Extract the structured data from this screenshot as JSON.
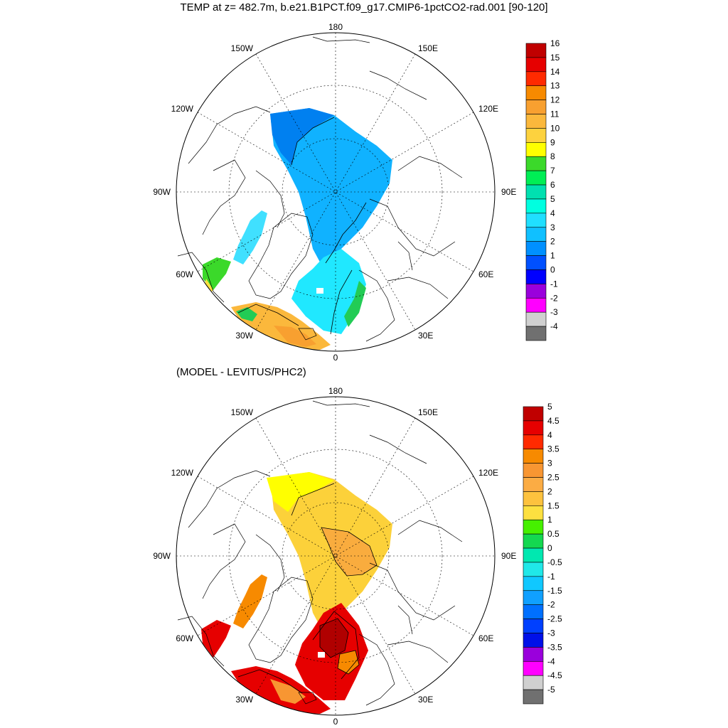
{
  "header": {
    "title": "TEMP at z= 482.7m, b.e21.B1PCT.f09_g17.CMIP6-1pctCO2-rad.001 [90-120]",
    "subtitle": "(MODEL - LEVITUS/PHC2)"
  },
  "lon_labels": {
    "top": "180",
    "bottom": "0",
    "left": "90W",
    "right": "90E",
    "upper_left_near": "150W",
    "upper_left_far": "120W",
    "lower_left_far": "60W",
    "lower_left_near": "30W",
    "upper_right_near": "150E",
    "upper_right_far": "120E",
    "lower_right_far": "60E",
    "lower_right_near": "30E"
  },
  "colorbar_top": {
    "labels": [
      "16",
      "15",
      "14",
      "13",
      "12",
      "11",
      "10",
      "9",
      "8",
      "7",
      "6",
      "5",
      "4",
      "3",
      "2",
      "1",
      "0",
      "-1",
      "-2",
      "-3",
      "-4"
    ],
    "colors": [
      "#c00000",
      "#e60000",
      "#ff2a00",
      "#f78a00",
      "#f8a030",
      "#fbb83c",
      "#fdd23e",
      "#ffff00",
      "#3bd92a",
      "#00ee55",
      "#00e0b0",
      "#00ffe0",
      "#20dfff",
      "#10c0ff",
      "#0090ff",
      "#0050ff",
      "#0000ff",
      "#9a00dc",
      "#ff00ff",
      "#d0d0d0",
      "#707070"
    ]
  },
  "colorbar_bottom": {
    "labels": [
      "5",
      "4.5",
      "4",
      "3.5",
      "3",
      "2.5",
      "2",
      "1.5",
      "1",
      "0.5",
      "0",
      "-0.5",
      "-1",
      "-1.5",
      "-2",
      "-2.5",
      "-3",
      "-3.5",
      "-4",
      "-4.5",
      "-5"
    ],
    "colors": [
      "#c00000",
      "#e60000",
      "#ff2a00",
      "#f78a00",
      "#f89632",
      "#fbac44",
      "#fdc23e",
      "#fde040",
      "#46f000",
      "#14d850",
      "#00e8b0",
      "#20e8e8",
      "#10c8ff",
      "#10a0ff",
      "#0070ff",
      "#0040ff",
      "#0010e8",
      "#9a00dc",
      "#ff00ff",
      "#d0d0d0",
      "#707070"
    ]
  },
  "fields": {
    "top": {
      "arctic_basin": "#10b2ff",
      "beaufort": "#0080f0",
      "nordic_seas": "#20e8ff",
      "baffin": "#40e0ff",
      "labrador": "#3bd92a",
      "barents_edge": "#22cc55",
      "irminger": "#fbb83c",
      "irminger_warm": "#f8a030",
      "denmark_strait": "#22cc55",
      "north_sea": "#fde040"
    },
    "bottom": {
      "arctic_basin": "#fcd13a",
      "beaufort": "#ffff00",
      "central_warm": "#f9ac3e",
      "nordic_seas": "#e60000",
      "nordic_core": "#b00000",
      "nordic_mid": "#f78a00",
      "baffin": "#f78a00",
      "labrador": "#e60000",
      "irminger": "#e60000",
      "north_sea": "#f89632"
    }
  }
}
